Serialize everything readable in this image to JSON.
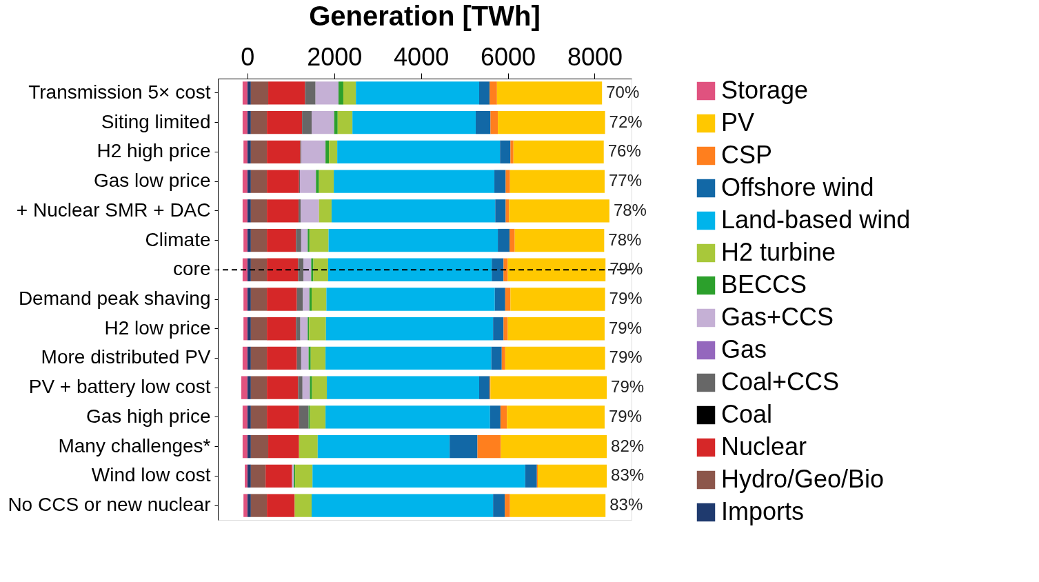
{
  "chart_data": {
    "type": "bar",
    "orientation": "horizontal",
    "stacked": true,
    "title": "Generation [TWh]",
    "categories": [
      "Transmission 5× cost",
      "Siting limited",
      "H2 high price",
      "Gas low price",
      "+ Nuclear SMR + DAC",
      "Climate",
      "core",
      "Demand peak shaving",
      "H2 low price",
      "More distributed PV",
      "PV + battery low cost",
      "Gas high price",
      "Many challenges*",
      "Wind low cost",
      "No CCS or new nuclear"
    ],
    "series": [
      {
        "name": "Imports",
        "color": "#1f3a6e",
        "values": [
          80,
          80,
          80,
          80,
          80,
          80,
          80,
          80,
          80,
          80,
          80,
          80,
          80,
          80,
          80
        ]
      },
      {
        "name": "Hydro/Geo/Bio",
        "color": "#8c564b",
        "values": [
          400,
          370,
          370,
          370,
          370,
          370,
          370,
          370,
          370,
          370,
          370,
          370,
          400,
          340,
          370
        ]
      },
      {
        "name": "Nuclear",
        "color": "#d62728",
        "values": [
          850,
          810,
          770,
          740,
          730,
          670,
          720,
          690,
          670,
          690,
          720,
          740,
          710,
          610,
          640
        ]
      },
      {
        "name": "Coal",
        "color": "#000000",
        "values": [
          0,
          0,
          0,
          0,
          0,
          0,
          0,
          0,
          0,
          0,
          0,
          0,
          0,
          0,
          0
        ]
      },
      {
        "name": "Coal+CCS",
        "color": "#676767",
        "values": [
          240,
          220,
          20,
          20,
          50,
          120,
          120,
          140,
          100,
          100,
          100,
          220,
          0,
          0,
          0
        ]
      },
      {
        "name": "Gas",
        "color": "#9467bd",
        "values": [
          0,
          0,
          0,
          0,
          0,
          0,
          0,
          0,
          0,
          0,
          0,
          0,
          0,
          0,
          0
        ]
      },
      {
        "name": "Gas+CCS",
        "color": "#c5b0d5",
        "values": [
          530,
          520,
          560,
          370,
          420,
          150,
          180,
          150,
          170,
          170,
          170,
          0,
          0,
          40,
          0
        ]
      },
      {
        "name": "BECCS",
        "color": "#2ca02c",
        "values": [
          110,
          80,
          80,
          70,
          0,
          40,
          50,
          50,
          30,
          50,
          50,
          30,
          0,
          30,
          0
        ]
      },
      {
        "name": "H2 turbine",
        "color": "#a8c83a",
        "values": [
          290,
          340,
          190,
          340,
          290,
          440,
          340,
          340,
          390,
          340,
          340,
          360,
          430,
          400,
          390
        ]
      },
      {
        "name": "Land-based wind",
        "color": "#00b4eb",
        "values": [
          2840,
          2840,
          3750,
          3700,
          3770,
          3900,
          3770,
          3880,
          3850,
          3820,
          3510,
          3790,
          3040,
          4900,
          4180
        ]
      },
      {
        "name": "Offshore wind",
        "color": "#1268a6",
        "values": [
          240,
          340,
          240,
          260,
          240,
          270,
          270,
          240,
          240,
          240,
          240,
          240,
          640,
          270,
          270
        ]
      },
      {
        "name": "CSP",
        "color": "#ff7f1e",
        "values": [
          170,
          170,
          70,
          100,
          80,
          120,
          100,
          120,
          100,
          80,
          20,
          150,
          540,
          20,
          120
        ]
      },
      {
        "name": "PV",
        "color": "#ffc800",
        "values": [
          2420,
          2470,
          2080,
          2180,
          2310,
          2060,
          2250,
          2180,
          2230,
          2300,
          2680,
          2250,
          2440,
          1590,
          2200
        ]
      },
      {
        "name": "Storage",
        "color": "#e0527f",
        "values": [
          -110,
          -110,
          -90,
          -110,
          -110,
          -90,
          -110,
          -90,
          -90,
          -110,
          -140,
          -110,
          -110,
          -60,
          -90
        ]
      }
    ],
    "xlim": [
      -680,
      8850
    ],
    "xticks": [
      0,
      2000,
      4000,
      6000,
      8000
    ],
    "grid": false,
    "legend": "right",
    "ref_lines": [
      {
        "axis": "y",
        "value": "core",
        "color": "#000000",
        "line_style": "dashed"
      }
    ],
    "annotations": [
      "70%",
      "72%",
      "76%",
      "77%",
      "78%",
      "78%",
      "79%",
      "79%",
      "79%",
      "79%",
      "79%",
      "79%",
      "82%",
      "83%",
      "83%"
    ]
  }
}
